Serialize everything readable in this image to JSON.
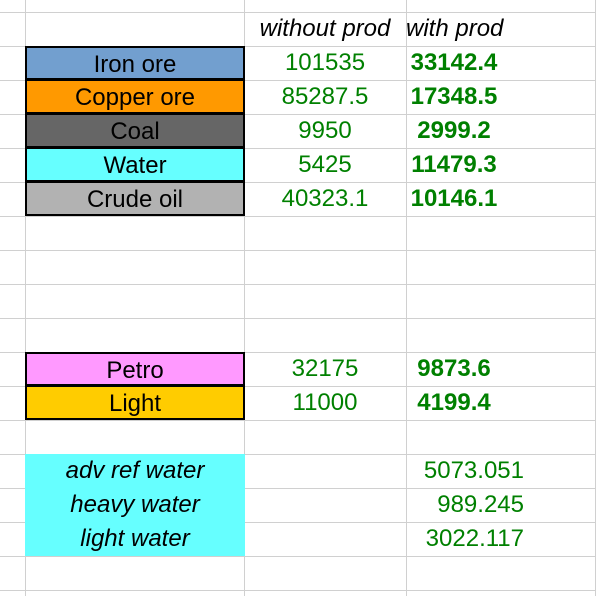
{
  "header": {
    "without": "without prod",
    "with": "with prod"
  },
  "resources": [
    {
      "label": "Iron ore",
      "color": "#729fcf",
      "without": "101535",
      "with": "33142.4"
    },
    {
      "label": "Copper ore",
      "color": "#ff9900",
      "without": "85287.5",
      "with": "17348.5"
    },
    {
      "label": "Coal",
      "color": "#666666",
      "without": "9950",
      "with": "2999.2"
    },
    {
      "label": "Water",
      "color": "#66ffff",
      "without": "5425",
      "with": "11479.3"
    },
    {
      "label": "Crude oil",
      "color": "#b2b2b2",
      "without": "40323.1",
      "with": "10146.1"
    }
  ],
  "products": [
    {
      "label": "Petro",
      "color": "#ff99ff",
      "without": "32175",
      "with": "9873.6"
    },
    {
      "label": "Light",
      "color": "#ffcc00",
      "without": "11000",
      "with": "4199.4"
    }
  ],
  "water": [
    {
      "label": "adv ref water",
      "value": "5073.051"
    },
    {
      "label": "heavy water",
      "value": "989.245"
    },
    {
      "label": "light water",
      "value": "3022.117"
    }
  ]
}
